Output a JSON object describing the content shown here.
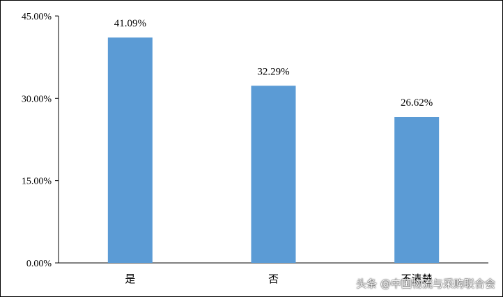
{
  "chart_data": {
    "type": "bar",
    "categories": [
      "是",
      "否",
      "不清楚"
    ],
    "values": [
      41.09,
      32.29,
      26.62
    ],
    "data_labels": [
      "41.09%",
      "32.29%",
      "26.62%"
    ],
    "title": "",
    "xlabel": "",
    "ylabel": "",
    "ylim": [
      0,
      45
    ],
    "yticks": [
      0,
      15,
      30,
      45
    ],
    "ytick_labels": [
      "0.00%",
      "15.00%",
      "30.00%",
      "45.00%"
    ],
    "grid": false,
    "legend": "none",
    "bar_color": "#5B9BD5"
  },
  "watermark": "头条 @中国物流与采购联合会"
}
